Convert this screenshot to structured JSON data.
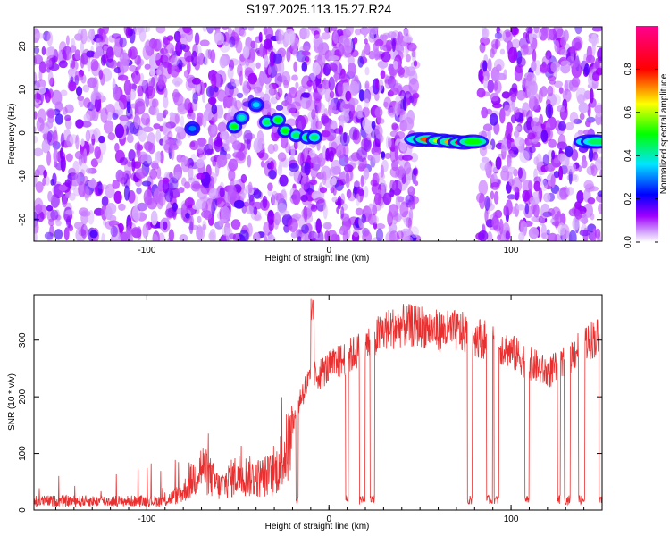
{
  "title": "S197.2025.113.15.27.R24",
  "chart_data": [
    {
      "type": "heatmap",
      "xlabel": "Height of straight line (km)",
      "ylabel": "Frequency (Hz)",
      "xlim": [
        -162,
        150
      ],
      "ylim": [
        -25,
        24.5
      ],
      "xticks": [
        -100,
        0,
        100
      ],
      "xtick_labels": [
        "-100",
        "0",
        "100"
      ],
      "yticks": [
        -20,
        -10,
        0,
        10,
        20
      ],
      "ytick_labels": [
        "-20",
        "-10",
        "0",
        "10",
        "20"
      ],
      "colorbar": {
        "label": "Normalized spectral amplitude",
        "ticks": [
          0.0,
          0.2,
          0.4,
          0.6,
          0.8
        ],
        "tick_labels": [
          "0.0",
          "0.2",
          "0.4",
          "0.6",
          "0.8"
        ],
        "colormap": [
          "#ffffff",
          "#a000ff",
          "#0000ff",
          "#00e5ff",
          "#00ff00",
          "#ffff00",
          "#ff0000",
          "#ff00aa"
        ]
      },
      "noise_regions": [
        {
          "x": [
            -162,
            -90
          ],
          "density": "medium"
        },
        {
          "x": [
            -90,
            -7
          ],
          "density": "high"
        },
        {
          "x": [
            -7,
            48
          ],
          "density": "medium"
        },
        {
          "x": [
            83,
            150
          ],
          "density": "medium"
        }
      ],
      "tone_track": [
        {
          "x": -75,
          "y": 1.0,
          "amp": 0.3
        },
        {
          "x": -52,
          "y": 1.5,
          "amp": 0.5
        },
        {
          "x": -48,
          "y": 3.5,
          "amp": 0.4
        },
        {
          "x": -40,
          "y": 6.5,
          "amp": 0.35
        },
        {
          "x": -34,
          "y": 2.5,
          "amp": 0.45
        },
        {
          "x": -28,
          "y": 3.0,
          "amp": 0.5
        },
        {
          "x": -24,
          "y": 0.5,
          "amp": 0.5
        },
        {
          "x": -18,
          "y": -0.5,
          "amp": 0.45
        },
        {
          "x": -12,
          "y": -1.0,
          "amp": 0.45
        },
        {
          "x": -8,
          "y": -1.0,
          "amp": 0.45
        }
      ],
      "tone_band": [
        {
          "x": 50,
          "y": -1.5,
          "amp": 0.45
        },
        {
          "x": 55,
          "y": -1.5,
          "amp": 0.75
        },
        {
          "x": 62,
          "y": -1.8,
          "amp": 0.6
        },
        {
          "x": 68,
          "y": -2.0,
          "amp": 0.7
        },
        {
          "x": 74,
          "y": -2.2,
          "amp": 0.85
        },
        {
          "x": 79,
          "y": -2.0,
          "amp": 0.5
        },
        {
          "x": 143,
          "y": -2.0,
          "amp": 0.45
        },
        {
          "x": 147,
          "y": -2.0,
          "amp": 0.45
        }
      ]
    },
    {
      "type": "line",
      "xlabel": "Height of straight line (km)",
      "ylabel": "SNR (10 * v/v)",
      "xlim": [
        -162,
        150
      ],
      "ylim": [
        0,
        380
      ],
      "xticks": [
        -100,
        0,
        100
      ],
      "xtick_labels": [
        "-100",
        "0",
        "100"
      ],
      "yticks": [
        0,
        100,
        200,
        300
      ],
      "ytick_labels": [
        "0",
        "100",
        "200",
        "300"
      ],
      "color": "#e83030",
      "envelope": {
        "x": [
          -162,
          -90,
          -80,
          -70,
          -60,
          -50,
          -40,
          -30,
          -20,
          -15,
          -10,
          0,
          10,
          20,
          30,
          40,
          50,
          60,
          70,
          80,
          90,
          100,
          110,
          120,
          130,
          140,
          150
        ],
        "y": [
          20,
          20,
          40,
          95,
          50,
          80,
          70,
          80,
          160,
          220,
          250,
          270,
          290,
          310,
          340,
          350,
          350,
          340,
          340,
          330,
          320,
          300,
          280,
          260,
          280,
          320,
          330
        ]
      },
      "drop_level": 20
    }
  ]
}
